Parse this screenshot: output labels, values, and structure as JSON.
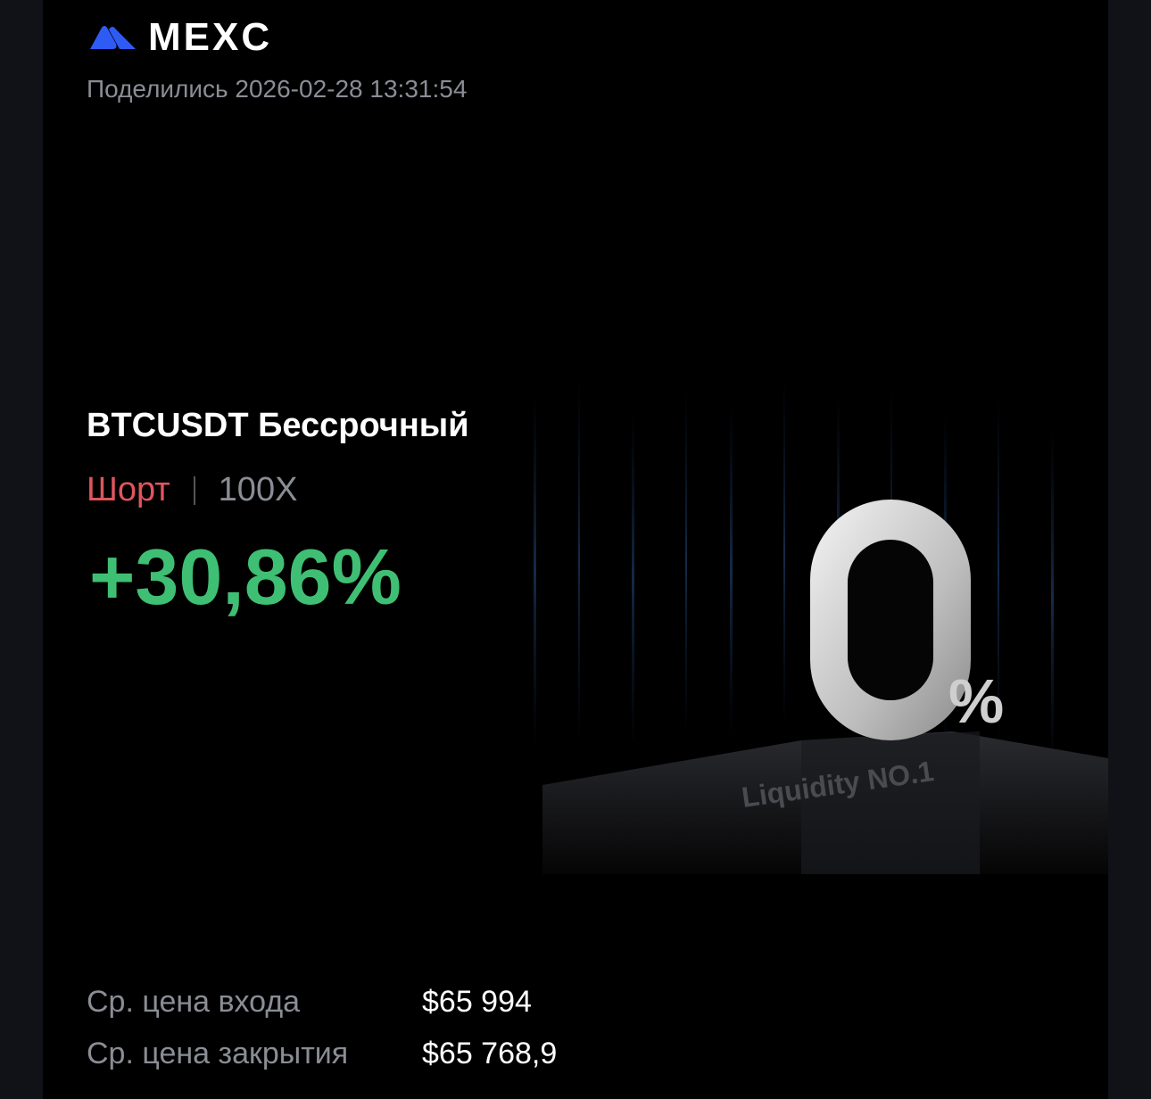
{
  "brand": {
    "name": "MEXC",
    "logo_color": "#2f5bf5"
  },
  "shared_text": "Поделились 2026-02-28 13:31:54",
  "artwork": {
    "big_text": "0",
    "percent": "%",
    "pedestal_text": "Liquidity NO.1"
  },
  "position": {
    "pair": "BTCUSDT Бессрочный",
    "side": "Шорт",
    "side_color": "#e0555e",
    "leverage": "100X",
    "pnl": "+30,86%",
    "pnl_color": "#3fbf73"
  },
  "details": [
    {
      "label": "Ср. цена входа",
      "value": "$65 994"
    },
    {
      "label": "Ср. цена закрытия",
      "value": "$65 768,9"
    }
  ]
}
